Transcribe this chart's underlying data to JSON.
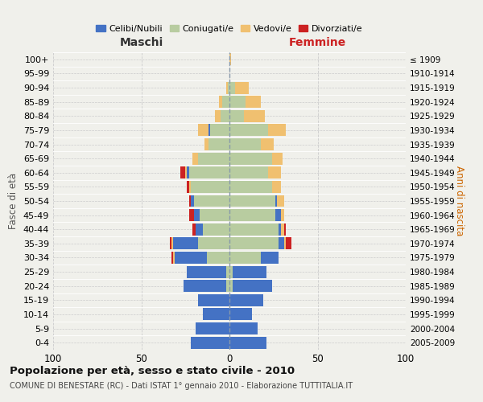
{
  "age_groups": [
    "0-4",
    "5-9",
    "10-14",
    "15-19",
    "20-24",
    "25-29",
    "30-34",
    "35-39",
    "40-44",
    "45-49",
    "50-54",
    "55-59",
    "60-64",
    "65-69",
    "70-74",
    "75-79",
    "80-84",
    "85-89",
    "90-94",
    "95-99",
    "100+"
  ],
  "birth_years": [
    "2005-2009",
    "2000-2004",
    "1995-1999",
    "1990-1994",
    "1985-1989",
    "1980-1984",
    "1975-1979",
    "1970-1974",
    "1965-1969",
    "1960-1964",
    "1955-1959",
    "1950-1954",
    "1945-1949",
    "1940-1944",
    "1935-1939",
    "1930-1934",
    "1925-1929",
    "1920-1924",
    "1915-1919",
    "1910-1914",
    "≤ 1909"
  ],
  "maschi_celibi": [
    22,
    19,
    15,
    18,
    24,
    22,
    18,
    14,
    4,
    3,
    2,
    0,
    1,
    0,
    0,
    1,
    0,
    0,
    0,
    0,
    0
  ],
  "maschi_coniugati": [
    0,
    0,
    0,
    0,
    2,
    2,
    13,
    18,
    15,
    17,
    20,
    22,
    23,
    18,
    12,
    11,
    5,
    4,
    1,
    0,
    0
  ],
  "maschi_vedovi": [
    0,
    0,
    0,
    0,
    0,
    0,
    1,
    1,
    0,
    0,
    0,
    1,
    1,
    3,
    2,
    6,
    3,
    2,
    1,
    0,
    0
  ],
  "maschi_divorziati": [
    0,
    0,
    0,
    0,
    0,
    0,
    1,
    1,
    2,
    3,
    1,
    1,
    3,
    0,
    0,
    0,
    0,
    0,
    0,
    0,
    0
  ],
  "femmine_celibi": [
    21,
    16,
    13,
    19,
    22,
    19,
    10,
    3,
    1,
    3,
    1,
    0,
    0,
    0,
    0,
    0,
    0,
    0,
    0,
    0,
    0
  ],
  "femmine_coniugati": [
    0,
    0,
    0,
    0,
    2,
    2,
    18,
    28,
    28,
    26,
    26,
    24,
    22,
    24,
    18,
    22,
    8,
    9,
    3,
    0,
    0
  ],
  "femmine_vedovi": [
    0,
    0,
    0,
    0,
    0,
    0,
    0,
    1,
    2,
    2,
    4,
    5,
    7,
    6,
    7,
    10,
    12,
    9,
    8,
    0,
    1
  ],
  "femmine_divorziati": [
    0,
    0,
    0,
    0,
    0,
    0,
    0,
    3,
    1,
    0,
    0,
    0,
    0,
    0,
    0,
    0,
    0,
    0,
    0,
    0,
    0
  ],
  "colors": {
    "celibi": "#4472c4",
    "coniugati": "#b8cca0",
    "vedovi": "#f0c070",
    "divorziati": "#cc2222"
  },
  "title": "Popolazione per età, sesso e stato civile - 2010",
  "subtitle": "COMUNE DI BENESTARE (RC) - Dati ISTAT 1° gennaio 2010 - Elaborazione TUTTITALIA.IT",
  "xlabel_maschi": "Maschi",
  "xlabel_femmine": "Femmine",
  "ylabel_left": "Fasce di età",
  "ylabel_right": "Anni di nascita",
  "xlim": 100,
  "legend_labels": [
    "Celibi/Nubili",
    "Coniugati/e",
    "Vedovi/e",
    "Divorziati/e"
  ],
  "background_color": "#f0f0eb",
  "bar_height": 0.85
}
